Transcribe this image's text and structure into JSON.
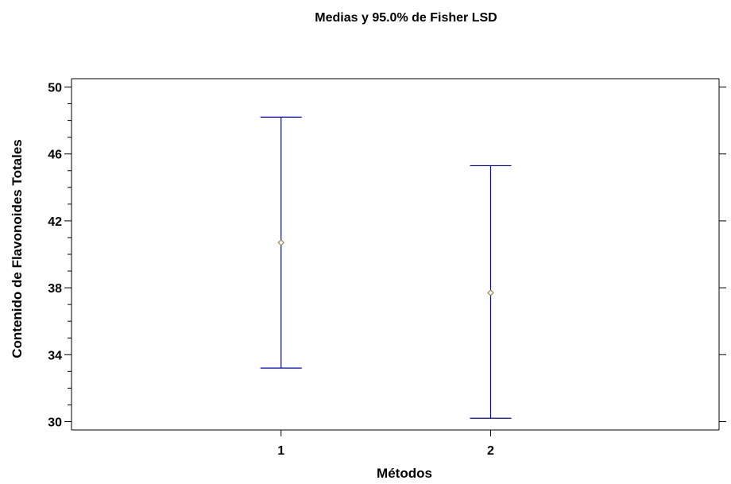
{
  "chart_data": {
    "type": "errorbar",
    "title": "Medias y 95.0% de Fisher LSD",
    "xlabel": "Métodos",
    "ylabel": "Contenido de Flavonoides Totales",
    "categories": [
      "1",
      "2"
    ],
    "means": [
      40.7,
      37.7
    ],
    "lower": [
      33.2,
      30.2
    ],
    "upper": [
      48.2,
      45.3
    ],
    "ylim": [
      29.5,
      50.5
    ],
    "yticks": [
      30,
      34,
      38,
      42,
      46,
      50
    ],
    "grid": false,
    "colors": {
      "interval": "#0000cc",
      "mean_marker": "#8a7a2a",
      "axis": "#000000"
    }
  }
}
